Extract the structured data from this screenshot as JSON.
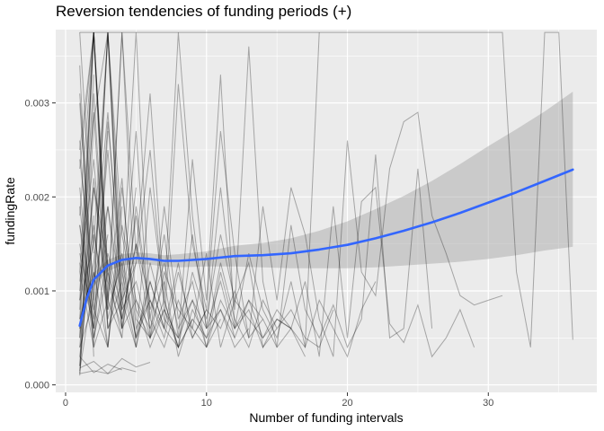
{
  "chart_data": {
    "type": "line",
    "title": "Reversion tendencies of funding periods (+)",
    "xlabel": "Number of funding intervals",
    "ylabel": "fundingRate",
    "xlim": [
      -0.7,
      37.7
    ],
    "ylim": [
      -8e-05,
      0.00378
    ],
    "x_ticks": [
      0,
      10,
      20,
      30
    ],
    "x_tick_labels": [
      "0",
      "10",
      "20",
      "30"
    ],
    "y_ticks": [
      0,
      0.001,
      0.002,
      0.003
    ],
    "y_tick_labels": [
      "0.000",
      "0.001",
      "0.002",
      "0.003"
    ],
    "grid": true,
    "legend": "none",
    "colors": {
      "panel_background": "#ebebeb",
      "grid_major": "#ffffff",
      "trace": "#000000",
      "smooth_line": "#3366ff",
      "ribbon": "#999999"
    },
    "series": [
      {
        "x": [
          1,
          2,
          3,
          4,
          5,
          6,
          7,
          8,
          9,
          10,
          11,
          12,
          13,
          14,
          15,
          16,
          17,
          18,
          19,
          20,
          21,
          22,
          23,
          24,
          25,
          26,
          27,
          28,
          29,
          30,
          31,
          32,
          33,
          34,
          35,
          36
        ],
        "y": [
          0.00375,
          0.00375,
          0.00375,
          0.00375,
          0.00375,
          0.00375,
          0.00375,
          0.00375,
          0.00375,
          0.00375,
          0.00375,
          0.00375,
          0.00375,
          0.00375,
          0.00375,
          0.00375,
          0.00375,
          0.00375,
          0.00375,
          0.00375,
          0.00375,
          0.00375,
          0.00375,
          0.00375,
          0.00375,
          0.00375,
          0.00375,
          0.00375,
          0.00375,
          0.00375,
          0.00375,
          0.0012,
          0.0004,
          0.00375,
          0.00375,
          0.00048
        ]
      },
      {
        "x": [
          1,
          2,
          3,
          4,
          5,
          6,
          7,
          8,
          9,
          10,
          11,
          12,
          13,
          14,
          15,
          16,
          17,
          18,
          19,
          20,
          21,
          22,
          23,
          24,
          25,
          26,
          27,
          28,
          29,
          30,
          31
        ],
        "y": [
          0.0018,
          0.00375,
          0.0009,
          0.0022,
          0.0004,
          0.0011,
          0.0006,
          0.0032,
          0.0015,
          0.0008,
          0.0027,
          0.0014,
          0.0005,
          0.0019,
          0.0009,
          0.0021,
          0.0016,
          0.0007,
          0.0003,
          0.0026,
          0.0012,
          0.00095,
          0.0023,
          0.0028,
          0.0029,
          0.0018,
          0.0014,
          0.00095,
          0.00085,
          0.0009,
          0.00095
        ]
      },
      {
        "x": [
          1,
          2,
          3,
          4,
          5,
          6,
          7,
          8,
          9,
          10,
          11,
          12,
          13,
          14,
          15,
          16,
          17,
          18,
          19,
          20,
          21,
          22,
          23,
          24,
          25,
          26,
          27,
          28,
          29
        ],
        "y": [
          0.0009,
          0.0015,
          0.00375,
          0.0006,
          0.0013,
          0.0025,
          0.0008,
          0.0004,
          0.0012,
          0.0007,
          0.0016,
          0.0009,
          0.0013,
          0.0004,
          0.0007,
          0.0006,
          0.0011,
          0.0003,
          0.0019,
          0.0005,
          0.00195,
          0.0021,
          0.00065,
          0.00045,
          0.00085,
          0.0003,
          0.0005,
          0.0008,
          0.0004
        ]
      },
      {
        "x": [
          1,
          2,
          3,
          4,
          5,
          6,
          7,
          8,
          9,
          10,
          11,
          12,
          13,
          14,
          15,
          16,
          17,
          18,
          19,
          20,
          21,
          22,
          23,
          24,
          25,
          26
        ],
        "y": [
          0.0004,
          0.0022,
          0.0008,
          0.00375,
          0.0014,
          0.0031,
          0.0009,
          0.00375,
          0.0018,
          0.0006,
          0.0021,
          0.0008,
          0.0036,
          0.0011,
          0.0004,
          0.0017,
          0.0008,
          0.0005,
          0.00085,
          0.0004,
          0.0007,
          0.00245,
          0.0005,
          0.0006,
          0.0023,
          0.0006
        ]
      },
      {
        "x": [
          1,
          2,
          3,
          4,
          5,
          6,
          7,
          8,
          9,
          10,
          11,
          12,
          13,
          14,
          15,
          16,
          17,
          18,
          19,
          20,
          21,
          22
        ],
        "y": [
          0.0013,
          0.0006,
          0.0028,
          0.0011,
          0.00375,
          0.0007,
          0.0016,
          0.0005,
          0.0024,
          0.0009,
          0.0033,
          0.0006,
          0.0014,
          0.0008,
          0.0005,
          0.0011,
          0.0004,
          0.0009,
          0.0006,
          0.0003,
          0.0008,
          0.0011
        ]
      },
      {
        "x": [
          1,
          2,
          3,
          4,
          5,
          6,
          7,
          8,
          9,
          10,
          11,
          12,
          13,
          14,
          15,
          16,
          17,
          18
        ],
        "y": [
          0.0025,
          0.00375,
          0.0012,
          0.0005,
          0.0019,
          0.0008,
          0.0013,
          0.0006,
          0.0009,
          0.0004,
          0.0012,
          0.0006,
          0.0009,
          0.0005,
          0.0007,
          0.0006,
          0.0004,
          0.00375
        ]
      },
      {
        "x": [
          1,
          2,
          3,
          4,
          5,
          6,
          7,
          8,
          9,
          10,
          11,
          12,
          13,
          14,
          15,
          16,
          17,
          18,
          19
        ],
        "y": [
          0.0007,
          0.0012,
          0.0004,
          0.0017,
          0.0009,
          0.0006,
          0.0011,
          0.0003,
          0.0008,
          0.0005,
          0.0013,
          0.0007,
          0.0004,
          0.0009,
          0.0006,
          0.0008,
          0.0005,
          0.0004,
          0.0008
        ]
      },
      {
        "x": [
          1,
          2,
          3,
          4,
          5,
          6,
          7,
          8,
          9,
          10,
          11,
          12,
          13,
          14,
          15,
          16,
          17
        ],
        "y": [
          0.0002,
          0.0031,
          0.0007,
          0.0014,
          0.0005,
          0.0021,
          0.0009,
          0.0004,
          0.0016,
          0.0006,
          0.0011,
          0.0005,
          0.0009,
          0.0007,
          0.0004,
          0.0006,
          0.0003
        ]
      },
      {
        "x": [
          1,
          2,
          3,
          4,
          5,
          6,
          7,
          8,
          9,
          10,
          11,
          12,
          13,
          14,
          15,
          16
        ],
        "y": [
          0.0015,
          0.0006,
          0.0019,
          0.0009,
          0.0027,
          0.0005,
          0.0012,
          0.0008,
          0.0006,
          0.0014,
          0.0004,
          0.0009,
          0.0007,
          0.0005,
          0.0008,
          0.0006
        ]
      },
      {
        "x": [
          1,
          2,
          3,
          4,
          5,
          6,
          7,
          8,
          9,
          10,
          11,
          12,
          13,
          14,
          15
        ],
        "y": [
          0.0004,
          0.0009,
          0.00375,
          0.0016,
          0.0008,
          0.0005,
          0.0019,
          0.0007,
          0.0011,
          0.0004,
          0.0009,
          0.0006,
          0.0008,
          0.0004,
          0.0006
        ]
      },
      {
        "x": [
          1,
          2,
          3,
          4,
          5,
          6,
          7,
          8,
          9,
          10,
          11,
          12,
          13,
          14
        ],
        "y": [
          0.0021,
          0.0005,
          0.0012,
          0.0007,
          0.0015,
          0.0009,
          0.0006,
          0.0013,
          0.0005,
          0.0008,
          0.0006,
          0.001,
          0.0005,
          0.0007
        ]
      },
      {
        "x": [
          1,
          2,
          3,
          4,
          5,
          6,
          7,
          8,
          9,
          10,
          11,
          12,
          13
        ],
        "y": [
          0.0011,
          0.0024,
          0.0006,
          0.0009,
          0.0004,
          0.0013,
          0.0007,
          0.0005,
          0.0009,
          0.0006,
          0.0008,
          0.0004,
          0.0006
        ]
      },
      {
        "x": [
          1,
          2,
          3,
          4,
          5,
          6,
          7,
          8,
          9,
          10,
          11,
          12
        ],
        "y": [
          0.0006,
          0.0013,
          0.0029,
          0.0008,
          0.0011,
          0.0005,
          0.0009,
          0.0004,
          0.0007,
          0.0005,
          0.0008,
          0.0005
        ]
      },
      {
        "x": [
          1,
          2,
          3,
          4,
          5,
          6,
          7,
          8,
          9,
          10,
          11
        ],
        "y": [
          0.0017,
          0.0008,
          0.0004,
          0.0021,
          0.0006,
          0.0009,
          0.0005,
          0.0012,
          0.0006,
          0.0004,
          0.0007
        ]
      },
      {
        "x": [
          1,
          2,
          3,
          4,
          5,
          6,
          7,
          8,
          9,
          10
        ],
        "y": [
          0.0009,
          0.00375,
          0.0011,
          0.0006,
          0.0018,
          0.0007,
          0.0004,
          0.0009,
          0.0005,
          0.0008
        ]
      },
      {
        "x": [
          1,
          2,
          3,
          4,
          5,
          6,
          7,
          8,
          9
        ],
        "y": [
          0.0003,
          0.0016,
          0.0008,
          0.0013,
          0.0005,
          0.0011,
          0.0006,
          0.0004,
          0.0007
        ]
      },
      {
        "x": [
          1,
          2,
          3,
          4,
          5,
          6,
          7,
          8
        ],
        "y": [
          0.0024,
          0.0011,
          0.0019,
          0.0006,
          0.0009,
          0.0004,
          0.0008,
          0.0005
        ]
      },
      {
        "x": [
          1,
          2,
          3,
          4,
          5,
          6,
          7
        ],
        "y": [
          0.0012,
          0.0004,
          0.0009,
          0.00375,
          0.0007,
          0.0005,
          0.0008
        ]
      },
      {
        "x": [
          1,
          2,
          3,
          4,
          5,
          6
        ],
        "y": [
          0.0005,
          0.0021,
          0.0013,
          0.0007,
          0.0015,
          0.0006
        ]
      },
      {
        "x": [
          1,
          2,
          3,
          4,
          5,
          6
        ],
        "y": [
          0.0031,
          0.0009,
          0.00375,
          0.0012,
          0.0005,
          0.0009
        ]
      },
      {
        "x": [
          1,
          2,
          3,
          4,
          5
        ],
        "y": [
          0.0008,
          0.00375,
          0.0006,
          0.0011,
          0.0004
        ]
      },
      {
        "x": [
          1,
          2,
          3,
          4,
          5
        ],
        "y": [
          0.0019,
          0.0005,
          0.0014,
          0.0008,
          0.0021
        ]
      },
      {
        "x": [
          1,
          2,
          3,
          4,
          5
        ],
        "y": [
          0.0001,
          0.0028,
          0.00375,
          0.0009,
          0.0013
        ]
      },
      {
        "x": [
          1,
          2,
          3,
          4
        ],
        "y": [
          0.0014,
          0.0007,
          0.0025,
          0.0006
        ]
      },
      {
        "x": [
          1,
          2,
          3,
          4
        ],
        "y": [
          0.0006,
          0.0017,
          0.0004,
          0.0019
        ]
      },
      {
        "x": [
          1,
          2,
          3,
          4
        ],
        "y": [
          0.0023,
          0.00375,
          0.0009,
          0.0005
        ]
      },
      {
        "x": [
          1,
          2,
          3,
          4
        ],
        "y": [
          0.00015,
          0.0011,
          0.00375,
          0.0007
        ]
      },
      {
        "x": [
          1,
          2,
          3
        ],
        "y": [
          0.001,
          0.0029,
          0.0006
        ]
      },
      {
        "x": [
          1,
          2,
          3
        ],
        "y": [
          0.003,
          0.0008,
          0.0016
        ]
      },
      {
        "x": [
          1,
          2,
          3
        ],
        "y": [
          0.0005,
          0.00375,
          0.0012
        ]
      },
      {
        "x": [
          1,
          2,
          3
        ],
        "y": [
          0.0017,
          0.0004,
          0.0027
        ]
      },
      {
        "x": [
          1,
          2,
          3
        ],
        "y": [
          0.00012,
          0.0021,
          0.0009
        ]
      },
      {
        "x": [
          1,
          2
        ],
        "y": [
          0.0007,
          0.0033
        ]
      },
      {
        "x": [
          1,
          2
        ],
        "y": [
          0.0026,
          0.0006
        ]
      },
      {
        "x": [
          1,
          2
        ],
        "y": [
          0.0012,
          0.00375
        ]
      },
      {
        "x": [
          1,
          2
        ],
        "y": [
          0.00375,
          0.0014
        ]
      },
      {
        "x": [
          1,
          2
        ],
        "y": [
          0.0002,
          0.0018
        ]
      },
      {
        "x": [
          1,
          2
        ],
        "y": [
          0.0034,
          0.0003
        ]
      },
      {
        "x": [
          1,
          2,
          3,
          4,
          5
        ],
        "y": [
          0.00012,
          0.00015,
          0.00012,
          0.00018,
          0.00014
        ]
      },
      {
        "x": [
          1,
          2,
          3,
          4
        ],
        "y": [
          0.0003,
          0.00013,
          0.00022,
          0.00016
        ]
      },
      {
        "x": [
          1,
          2,
          3,
          4,
          5,
          6
        ],
        "y": [
          0.00018,
          0.00025,
          0.00012,
          0.00028,
          0.00019,
          0.00024
        ]
      }
    ],
    "smooth": {
      "method": "loess",
      "x": [
        1,
        1.5,
        2,
        3,
        4,
        5,
        6,
        7,
        8,
        10,
        12,
        14,
        16,
        18,
        20,
        22,
        24,
        26,
        28,
        30,
        32,
        34,
        36
      ],
      "y": [
        0.00063,
        0.00092,
        0.00112,
        0.00127,
        0.00133,
        0.00135,
        0.00134,
        0.00132,
        0.00132,
        0.00134,
        0.00137,
        0.00138,
        0.0014,
        0.00144,
        0.00149,
        0.00156,
        0.00164,
        0.00173,
        0.00183,
        0.00194,
        0.00205,
        0.00217,
        0.00229
      ],
      "lower": [
        0.00052,
        0.00083,
        0.00105,
        0.00121,
        0.00127,
        0.00129,
        0.00128,
        0.00126,
        0.00125,
        0.00126,
        0.00126,
        0.00125,
        0.00124,
        0.00124,
        0.00124,
        0.00125,
        0.00127,
        0.00129,
        0.00131,
        0.00134,
        0.00138,
        0.00143,
        0.00147
      ],
      "upper": [
        0.00074,
        0.00101,
        0.00119,
        0.00133,
        0.00139,
        0.00141,
        0.0014,
        0.00138,
        0.00139,
        0.00142,
        0.00148,
        0.00151,
        0.00156,
        0.00164,
        0.00174,
        0.00187,
        0.00201,
        0.00217,
        0.00235,
        0.00254,
        0.00272,
        0.00291,
        0.00312
      ]
    }
  }
}
